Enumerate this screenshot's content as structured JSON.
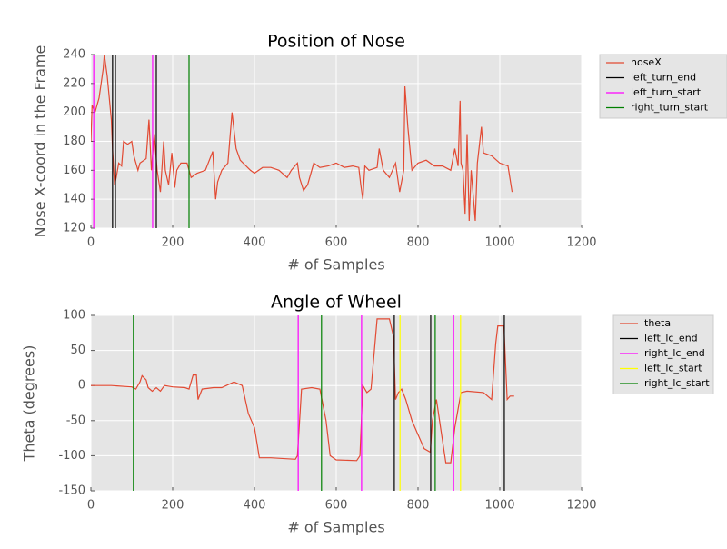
{
  "chart_data": [
    {
      "type": "line",
      "title": "Position of Nose",
      "xlabel": "# of Samples",
      "ylabel": "Nose X-coord in the Frame",
      "xlim": [
        0,
        1200
      ],
      "ylim": [
        120,
        240
      ],
      "xticks": [
        0,
        200,
        400,
        600,
        800,
        1000,
        1200
      ],
      "yticks": [
        120,
        140,
        160,
        180,
        200,
        220,
        240
      ],
      "grid": true,
      "series": [
        {
          "name": "noseX",
          "color": "#e24a33",
          "x": [
            0,
            3,
            10,
            20,
            30,
            33,
            40,
            50,
            53,
            58,
            62,
            68,
            75,
            80,
            90,
            100,
            105,
            115,
            120,
            135,
            142,
            148,
            155,
            162,
            170,
            178,
            182,
            190,
            198,
            205,
            210,
            220,
            235,
            245,
            260,
            280,
            298,
            305,
            310,
            320,
            335,
            345,
            355,
            365,
            390,
            400,
            420,
            440,
            460,
            480,
            490,
            505,
            510,
            520,
            530,
            545,
            560,
            580,
            600,
            620,
            640,
            655,
            660,
            665,
            670,
            680,
            700,
            705,
            715,
            730,
            745,
            755,
            765,
            768,
            775,
            785,
            800,
            820,
            840,
            860,
            880,
            890,
            898,
            903,
            905,
            910,
            915,
            920,
            925,
            930,
            940,
            945,
            955,
            960,
            980,
            1000,
            1020,
            1030
          ],
          "values": [
            180,
            205,
            200,
            210,
            230,
            240,
            225,
            195,
            175,
            150,
            155,
            165,
            163,
            180,
            178,
            180,
            170,
            160,
            165,
            168,
            195,
            160,
            185,
            160,
            145,
            180,
            160,
            150,
            172,
            148,
            160,
            165,
            165,
            155,
            158,
            160,
            173,
            140,
            152,
            160,
            165,
            200,
            175,
            167,
            160,
            158,
            162,
            162,
            160,
            155,
            160,
            165,
            155,
            146,
            150,
            165,
            162,
            163,
            165,
            162,
            163,
            162,
            150,
            140,
            163,
            160,
            162,
            175,
            160,
            155,
            165,
            145,
            160,
            218,
            190,
            160,
            165,
            167,
            163,
            163,
            160,
            175,
            163,
            208,
            165,
            160,
            130,
            185,
            125,
            160,
            125,
            165,
            190,
            172,
            170,
            165,
            163,
            145
          ]
        }
      ],
      "markers": [
        {
          "name": "left_turn_end",
          "color": "#000000",
          "x": [
            53,
            60,
            160
          ]
        },
        {
          "name": "left_turn_start",
          "color": "#ff00ff",
          "x": [
            7,
            151
          ]
        },
        {
          "name": "right_turn_start",
          "color": "#008000",
          "x": [
            240
          ]
        }
      ]
    },
    {
      "type": "line",
      "title": "Angle of Wheel",
      "xlabel": "# of Samples",
      "ylabel": "Theta (degrees)",
      "xlim": [
        0,
        1200
      ],
      "ylim": [
        -150,
        100
      ],
      "xticks": [
        0,
        200,
        400,
        600,
        800,
        1000,
        1200
      ],
      "yticks": [
        -150,
        -100,
        -50,
        0,
        50,
        100
      ],
      "grid": true,
      "series": [
        {
          "name": "theta",
          "color": "#e24a33",
          "x": [
            0,
            50,
            100,
            110,
            120,
            125,
            135,
            140,
            150,
            160,
            170,
            180,
            200,
            230,
            240,
            250,
            258,
            262,
            272,
            300,
            320,
            350,
            370,
            385,
            400,
            412,
            440,
            500,
            505,
            515,
            540,
            560,
            575,
            585,
            600,
            650,
            658,
            665,
            675,
            685,
            700,
            730,
            740,
            745,
            752,
            760,
            770,
            785,
            800,
            815,
            830,
            835,
            845,
            855,
            868,
            880,
            890,
            905,
            920,
            960,
            980,
            990,
            995,
            1010,
            1018,
            1025,
            1035
          ],
          "values": [
            0,
            0,
            -2,
            -5,
            5,
            14,
            8,
            -3,
            -8,
            -3,
            -8,
            0,
            -2,
            -3,
            -5,
            15,
            15,
            -20,
            -5,
            -3,
            -3,
            5,
            0,
            -40,
            -60,
            -103,
            -103,
            -105,
            -100,
            -5,
            -3,
            -5,
            -50,
            -100,
            -106,
            -107,
            -100,
            0,
            -10,
            -5,
            95,
            95,
            70,
            -20,
            -10,
            -5,
            -20,
            -50,
            -70,
            -90,
            -95,
            -50,
            -20,
            -60,
            -110,
            -110,
            -60,
            -10,
            -8,
            -10,
            -20,
            60,
            85,
            85,
            -20,
            -15,
            -15
          ]
        }
      ],
      "markers": [
        {
          "name": "left_lc_end",
          "color": "#000000",
          "x": [
            742,
            831,
            1011
          ]
        },
        {
          "name": "right_lc_end",
          "color": "#ff00ff",
          "x": [
            507,
            662,
            887
          ]
        },
        {
          "name": "left_lc_start",
          "color": "#ffff00",
          "x": [
            756,
            904
          ]
        },
        {
          "name": "right_lc_start",
          "color": "#008000",
          "x": [
            104,
            564,
            842
          ]
        }
      ]
    }
  ]
}
